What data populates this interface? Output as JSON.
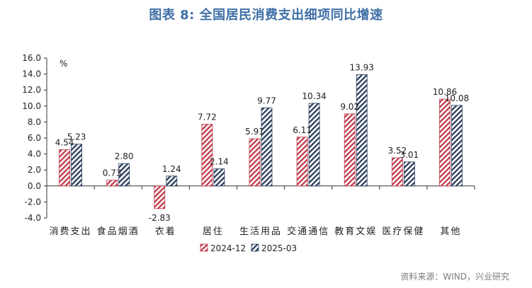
{
  "chart_data": {
    "type": "bar",
    "title": "图表 8:  全国居民消费支出细项同比增速",
    "unit": "%",
    "categories": [
      "消费支出",
      "食品烟酒",
      "衣着",
      "居住",
      "生活用品",
      "交通通信",
      "教育文娱",
      "医疗保健",
      "其他"
    ],
    "series": [
      {
        "name": "2024-12",
        "values": [
          4.54,
          0.73,
          -2.83,
          7.72,
          5.91,
          6.11,
          9.02,
          3.52,
          10.86
        ],
        "color": "#c0394a",
        "pattern": "diagonal-hatch"
      },
      {
        "name": "2025-03",
        "values": [
          5.23,
          2.8,
          1.24,
          2.14,
          9.77,
          10.34,
          13.93,
          3.01,
          10.08
        ],
        "color": "#2a3c5c",
        "pattern": "diagonal-hatch"
      }
    ],
    "data_labels": [
      [
        "4.54",
        "0.73",
        "-2.83",
        "7.72",
        "5.91",
        "6.11",
        "9.02",
        "3.52",
        "10.86"
      ],
      [
        "5.23",
        "2.80",
        "1.24",
        "2.14",
        "9.77",
        "10.34",
        "13.93",
        "3.01",
        "10.08"
      ]
    ],
    "ylim": [
      -4.0,
      16.0
    ],
    "yticks": [
      "-4.0",
      "-2.0",
      "0.0",
      "2.0",
      "4.0",
      "6.0",
      "8.0",
      "10.0",
      "12.0",
      "14.0",
      "16.0"
    ],
    "xlabel": "",
    "ylabel": "",
    "grid": false,
    "legend_position": "bottom-center"
  },
  "source": "资料来源：WIND，兴业研究"
}
